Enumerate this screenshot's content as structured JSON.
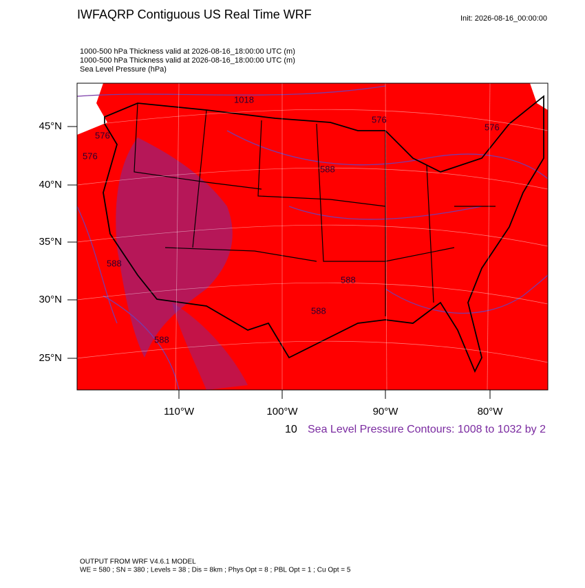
{
  "header": {
    "title": "IWFAQRP Contiguous US Real Time WRF",
    "init": "Init: 2026-08-16_00:00:00"
  },
  "fields": [
    "1000-500 hPa Thickness valid at 2026-08-16_18:00:00 UTC   (m)",
    "1000-500 hPa Thickness valid at 2026-08-16_18:00:00 UTC   (m)",
    "Sea Level Pressure   (hPa)"
  ],
  "map": {
    "lat_labels": [
      "45°N",
      "40°N",
      "35°N",
      "30°N",
      "25°N"
    ],
    "lon_labels": [
      "110°W",
      "100°W",
      "90°W",
      "80°W"
    ],
    "contour_labels": [
      "1018",
      "576",
      "576",
      "576",
      "576",
      "588",
      "588",
      "588",
      "588",
      "588"
    ]
  },
  "contour_note": {
    "prefix": "10",
    "text": "Sea Level Pressure Contours: 1008 to 1032 by 2"
  },
  "footer": {
    "line1": "OUTPUT FROM WRF V4.6.1 MODEL",
    "line2": "WE = 580 ; SN = 380 ; Levels = 38 ; Dis = 8km ; Phys Opt = 8 ; PBL Opt = 1 ; Cu Opt = 5"
  }
}
